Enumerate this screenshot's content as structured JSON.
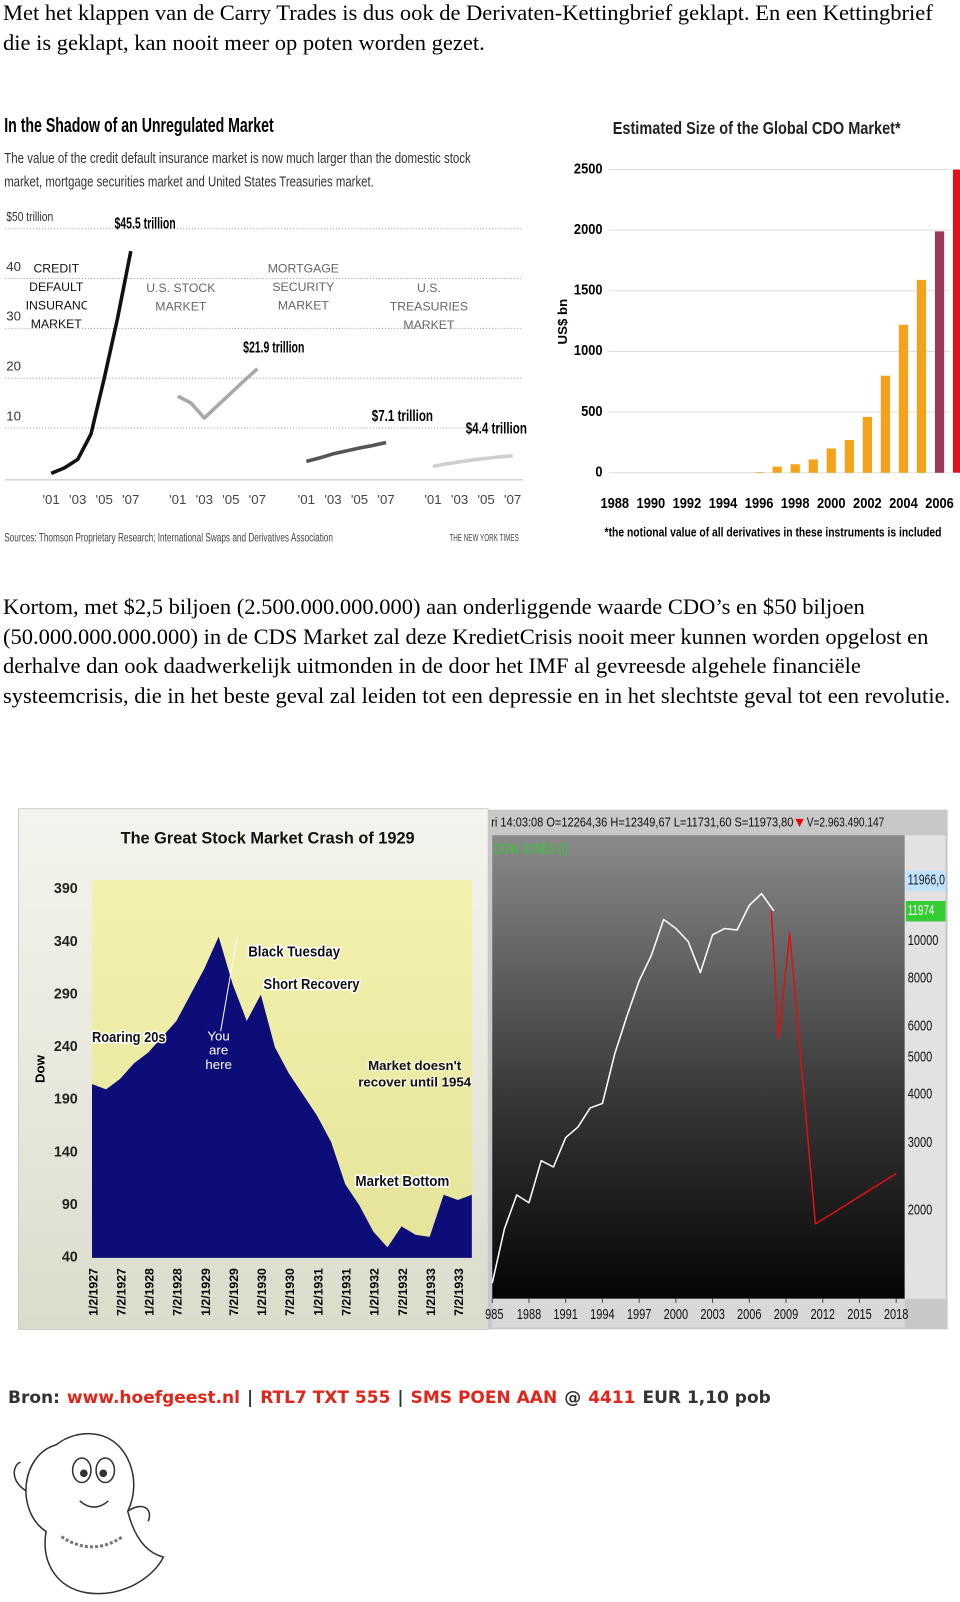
{
  "paragraphs": [
    "Met het klappen van de Carry Trades is dus ook de Derivaten-Kettingbrief geklapt. En een Kettingbrief die is geklapt, kan nooit meer op poten worden gezet.",
    "Kortom, met $2,5 biljoen (2.500.000.000.000) aan onderliggende waarde CDO’s en $50 biljoen (50.000.000.000.000) in de CDS Market zal deze KredietCrisis nooit meer kunnen worden opgelost en derhalve dan ook daadwerkelijk uitmonden in de door het IMF al gevreesde algehele financiële systeemcrisis, die in het beste geval zal leiden tot een depressie en in het slechtste geval tot een revolutie."
  ],
  "chart_data": [
    {
      "type": "multi-line",
      "title": "In the Shadow of an Unregulated Market",
      "subtitle": [
        "The value of the credit default insurance market is now much larger than the domestic stock",
        "market, mortgage securities market and United States Treasuries market."
      ],
      "categories": [
        "'01",
        null,
        "'03",
        null,
        "'05",
        null,
        "'07"
      ],
      "series": [
        {
          "name": "CREDIT DEFAULT INSURANCE MARKET",
          "color": "#111111",
          "values": [
            0.9,
            2,
            3.7,
            8.8,
            20,
            32,
            45.5
          ],
          "value_labels": [
            null,
            null,
            null,
            null,
            null,
            null,
            "$45.5 trillion"
          ]
        },
        {
          "name": "U.S. STOCK MARKET",
          "color": "#a8a8a8",
          "values": [
            16.4,
            15,
            12,
            14.5,
            17,
            19.5,
            21.9
          ],
          "value_labels": [
            null,
            null,
            null,
            null,
            null,
            null,
            "$21.9 trillion"
          ]
        },
        {
          "name": "MORTGAGE SECURITY MARKET",
          "color": "#555555",
          "values": [
            3.3,
            4,
            4.8,
            5.4,
            6,
            6.5,
            7.1
          ],
          "value_labels": [
            null,
            null,
            null,
            null,
            null,
            null,
            "$7.1 trillion"
          ]
        },
        {
          "name": "U.S. TREASURIES MARKET",
          "color": "#cfcfcf",
          "values": [
            2.3,
            2.8,
            3.2,
            3.6,
            3.9,
            4.2,
            4.4
          ],
          "value_labels": [
            null,
            null,
            null,
            null,
            null,
            null,
            "$4.4 trillion"
          ]
        }
      ],
      "ylim": [
        0,
        50
      ],
      "yticks": [
        10,
        20,
        30,
        40,
        {
          "value": 50,
          "label": "$50 trillion"
        }
      ],
      "grid": true,
      "source": "Sources: Thomson Proprietary Research; International Swaps and Derivatives Association",
      "credit": "THE NEW YORK TIMES"
    },
    {
      "type": "bar",
      "title": "Estimated Size of the Global CDO Market*",
      "y_label": "US$ bn",
      "categories": [
        "1988",
        null,
        "1990",
        null,
        "1992",
        null,
        "1994",
        null,
        "1996",
        null,
        "1998",
        null,
        "2000",
        null,
        "2002",
        null,
        "2004",
        null,
        "2006",
        null
      ],
      "values": [
        null,
        null,
        null,
        null,
        null,
        null,
        null,
        null,
        5,
        50,
        70,
        110,
        200,
        270,
        460,
        800,
        1220,
        1590,
        1990,
        2500
      ],
      "colors": [
        null,
        null,
        null,
        null,
        null,
        null,
        null,
        null,
        "#f5a21b",
        "#f5a21b",
        "#f5a21b",
        "#f5a21b",
        "#f5a21b",
        "#f5a21b",
        "#f5a21b",
        "#f5a21b",
        "#f5a21b",
        "#f5a21b",
        "#9c3a5c",
        "#e3101b"
      ],
      "ylim": [
        0,
        2500
      ],
      "yticks": [
        0,
        500,
        1000,
        1500,
        2000,
        2500
      ],
      "grid": true,
      "note": "*the notional value of all derivatives in these instruments is included"
    },
    {
      "type": "area",
      "title": "The Great Stock Market Crash of 1929",
      "y_label": "Dow",
      "categories": [
        "1/2/1927",
        null,
        "7/2/1927",
        null,
        "1/2/1928",
        null,
        "7/2/1928",
        null,
        "1/2/1929",
        null,
        "7/2/1929",
        null,
        "1/2/1930",
        null,
        "7/2/1930",
        null,
        "1/2/1931",
        null,
        "7/2/1931",
        null,
        "1/2/1932",
        null,
        "7/2/1932",
        null,
        "1/2/1933",
        null,
        "7/2/1933",
        null
      ],
      "values": [
        205,
        200,
        210,
        225,
        235,
        250,
        265,
        290,
        315,
        345,
        300,
        265,
        290,
        240,
        215,
        195,
        175,
        150,
        110,
        90,
        65,
        50,
        70,
        62,
        60,
        100,
        95,
        100
      ],
      "color": "#0d0d7a",
      "ylim": [
        40,
        390
      ],
      "yticks": [
        40,
        90,
        140,
        190,
        240,
        290,
        340,
        390
      ],
      "annotations": [
        "Black Tuesday",
        "Short Recovery",
        "Roaring 20s",
        "You are here",
        "Market doesn't recover until 1954",
        "Market Bottom"
      ]
    },
    {
      "type": "line",
      "title": "DOW JONES (I)",
      "header": [
        "ri 14:03:08 O=12264,36 H=12349,67 L=11731,60 S=11973,80",
        "V=2.963.490.147"
      ],
      "log_scale": true,
      "series": [
        {
          "color": "#ffffff",
          "x": [
            1985,
            1986,
            1987,
            1988,
            1989,
            1990,
            1991,
            1992,
            1993,
            1994,
            1995,
            1996,
            1997,
            1998,
            1999,
            2000,
            2001,
            2002,
            2003,
            2004,
            2005,
            2006,
            2007,
            2008
          ],
          "values": [
            1300,
            1800,
            2200,
            2100,
            2700,
            2600,
            3100,
            3300,
            3700,
            3800,
            5100,
            6400,
            7900,
            9200,
            11400,
            10800,
            10000,
            8300,
            10400,
            10800,
            10700,
            12400,
            13300,
            12000
          ]
        },
        {
          "color": "#dd1111",
          "x": [
            2007.8,
            2008.4,
            2009.3,
            2011.4,
            2018
          ],
          "values": [
            12000,
            5600,
            10500,
            1850,
            2500
          ]
        }
      ],
      "xlim": [
        1985,
        2018.7
      ],
      "ylim": [
        1184,
        18850
      ],
      "xticks": [
        {
          "value": 1985,
          "label": "985"
        },
        1988,
        1991,
        1994,
        1997,
        2000,
        2003,
        2006,
        2009,
        2012,
        2015,
        2018
      ],
      "yticks": [
        2000,
        3000,
        4000,
        5000,
        6000,
        8000,
        10000
      ],
      "price_markers": [
        {
          "value": 11966,
          "label": "11966,0",
          "color": "#bfe3ff"
        },
        {
          "value": 11974,
          "label": "11974",
          "color": "#33cc33"
        }
      ]
    }
  ],
  "footer": {
    "segments": [
      {
        "text": "Bron:",
        "color": "#333333"
      },
      {
        "text": "www.hoefgeest.nl",
        "color": "#e0261b"
      },
      {
        "text": "|",
        "color": "#333333"
      },
      {
        "text": "RTL7 TXT 555",
        "color": "#e0261b"
      },
      {
        "text": "|",
        "color": "#333333"
      },
      {
        "text": "SMS POEN AAN",
        "color": "#e0261b"
      },
      {
        "text": "@",
        "color": "#333333"
      },
      {
        "text": "4411",
        "color": "#e0261b"
      },
      {
        "text": "EUR 1,10 pob",
        "color": "#333333"
      }
    ]
  }
}
